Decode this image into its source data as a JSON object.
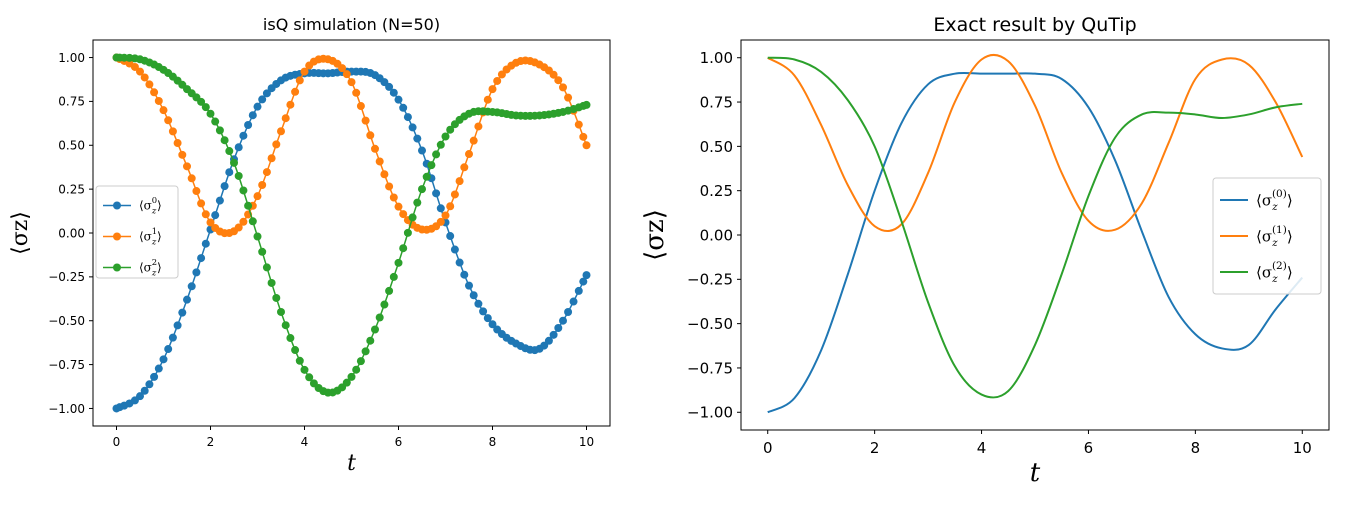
{
  "colors": {
    "blue": "#1f77b4",
    "orange": "#ff7f0e",
    "green": "#2ca02c"
  },
  "chart_data": [
    {
      "type": "scatter",
      "title": "isQ simulation (N=50)",
      "xlabel": "t",
      "ylabel": "⟨σz⟩",
      "xlim": [
        -0.5,
        10.5
      ],
      "ylim": [
        -1.1,
        1.1
      ],
      "xticks": [
        "0",
        "2",
        "4",
        "6",
        "8",
        "10"
      ],
      "yticks": [
        "1.00",
        "0.75",
        "0.50",
        "0.25",
        "0.00",
        "−0.25",
        "−0.50",
        "−0.75",
        "−1.00"
      ],
      "legend_placement": "center-left",
      "markers": true,
      "series": [
        {
          "name": "⟨σz0⟩",
          "legend_sup": "0",
          "color": "#1f77b4",
          "x": [
            0,
            0.5,
            1,
            1.5,
            2,
            2.5,
            3,
            3.5,
            4,
            4.5,
            5,
            5.5,
            6,
            6.5,
            7,
            7.5,
            8,
            8.5,
            9,
            9.5,
            10
          ],
          "y": [
            -1.0,
            -0.93,
            -0.72,
            -0.38,
            0.02,
            0.42,
            0.72,
            0.87,
            0.91,
            0.91,
            0.92,
            0.9,
            0.76,
            0.47,
            0.06,
            -0.3,
            -0.52,
            -0.63,
            -0.66,
            -0.5,
            -0.24
          ]
        },
        {
          "name": "⟨σz1⟩",
          "legend_sup": "1",
          "color": "#ff7f0e",
          "x": [
            0,
            0.5,
            1,
            1.5,
            2,
            2.5,
            3,
            3.5,
            4,
            4.5,
            5,
            5.5,
            6,
            6.5,
            7,
            7.5,
            8,
            8.5,
            9,
            9.5,
            10
          ],
          "y": [
            1.0,
            0.92,
            0.7,
            0.38,
            0.06,
            0.01,
            0.21,
            0.58,
            0.92,
            0.99,
            0.86,
            0.48,
            0.15,
            0.02,
            0.1,
            0.45,
            0.82,
            0.97,
            0.96,
            0.83,
            0.5
          ]
        },
        {
          "name": "⟨σz2⟩",
          "legend_sup": "2",
          "color": "#2ca02c",
          "x": [
            0,
            0.5,
            1,
            1.5,
            2,
            2.5,
            3,
            3.5,
            4,
            4.5,
            5,
            5.5,
            6,
            6.5,
            7,
            7.5,
            8,
            8.5,
            9,
            9.5,
            10
          ],
          "y": [
            1.0,
            0.99,
            0.93,
            0.82,
            0.68,
            0.4,
            -0.02,
            -0.45,
            -0.78,
            -0.91,
            -0.82,
            -0.55,
            -0.17,
            0.25,
            0.55,
            0.68,
            0.69,
            0.67,
            0.67,
            0.69,
            0.73
          ]
        }
      ]
    },
    {
      "type": "line",
      "title": "Exact result by QuTip",
      "xlabel": "t",
      "ylabel": "⟨σz⟩",
      "xlim": [
        -0.5,
        10.5
      ],
      "ylim": [
        -1.1,
        1.1
      ],
      "xticks": [
        "0",
        "2",
        "4",
        "6",
        "8",
        "10"
      ],
      "yticks": [
        "1.00",
        "0.75",
        "0.50",
        "0.25",
        "0.00",
        "−0.25",
        "−0.50",
        "−0.75",
        "−1.00"
      ],
      "legend_placement": "center-right",
      "markers": false,
      "series": [
        {
          "name": "⟨σz(0)⟩",
          "legend_sup": "(0)",
          "color": "#1f77b4",
          "x": [
            0,
            0.5,
            1,
            1.5,
            2,
            2.5,
            3,
            3.5,
            4,
            4.5,
            5,
            5.5,
            6,
            6.5,
            7,
            7.5,
            8,
            8.5,
            9,
            9.5,
            10
          ],
          "y": [
            -1.0,
            -0.92,
            -0.65,
            -0.22,
            0.25,
            0.63,
            0.85,
            0.91,
            0.91,
            0.91,
            0.91,
            0.88,
            0.72,
            0.42,
            0.02,
            -0.35,
            -0.56,
            -0.64,
            -0.62,
            -0.42,
            -0.24
          ]
        },
        {
          "name": "⟨σz(1)⟩",
          "legend_sup": "(1)",
          "color": "#ff7f0e",
          "x": [
            0,
            0.5,
            1,
            1.5,
            2,
            2.5,
            3,
            3.5,
            4,
            4.5,
            5,
            5.5,
            6,
            6.5,
            7,
            7.5,
            8,
            8.5,
            9,
            9.5,
            10
          ],
          "y": [
            1.0,
            0.9,
            0.62,
            0.28,
            0.05,
            0.06,
            0.35,
            0.75,
            0.99,
            0.98,
            0.73,
            0.35,
            0.08,
            0.03,
            0.18,
            0.52,
            0.88,
            0.99,
            0.96,
            0.75,
            0.44
          ]
        },
        {
          "name": "⟨σz(2)⟩",
          "legend_sup": "(2)",
          "color": "#2ca02c",
          "x": [
            0,
            0.5,
            1,
            1.5,
            2,
            2.5,
            3,
            3.5,
            4,
            4.5,
            5,
            5.5,
            6,
            6.5,
            7,
            7.5,
            8,
            8.5,
            9,
            9.5,
            10
          ],
          "y": [
            1.0,
            0.99,
            0.92,
            0.76,
            0.5,
            0.08,
            -0.38,
            -0.74,
            -0.9,
            -0.88,
            -0.62,
            -0.22,
            0.22,
            0.55,
            0.68,
            0.69,
            0.68,
            0.66,
            0.68,
            0.72,
            0.74
          ]
        }
      ]
    }
  ]
}
